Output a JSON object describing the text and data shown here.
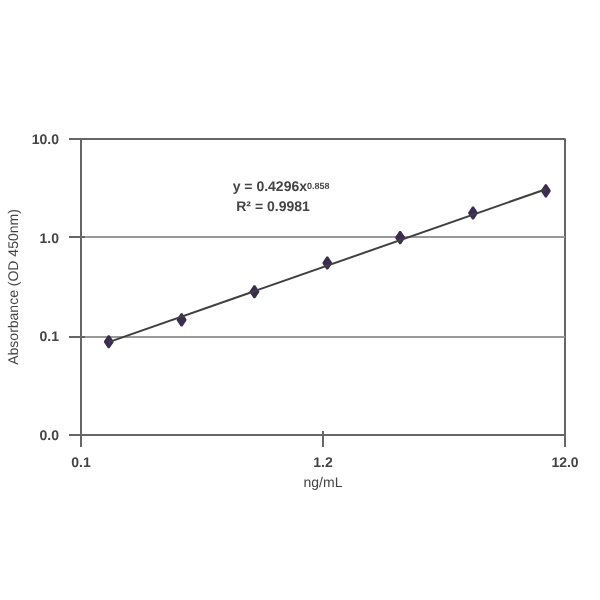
{
  "chart_data": {
    "type": "scatter",
    "xlabel": "ng/mL",
    "ylabel": "Absorbance (OD 450nm)",
    "log": "xy",
    "grid": "y",
    "marker": "diamond",
    "xlim": [
      0.12,
      12
    ],
    "xticks": [
      {
        "value": 0.12,
        "label": "0.1"
      },
      1.2,
      {
        "value": 12,
        "label": "12.0"
      }
    ],
    "ylim": [
      0.01,
      10
    ],
    "yticks": [
      {
        "value": 0.01,
        "label": "0.0"
      },
      {
        "value": 0.1,
        "label": "0.1"
      },
      {
        "value": 1,
        "label": "1.0"
      },
      {
        "value": 10,
        "label": "10.0"
      }
    ],
    "annotations": [
      "y = 0.4296x$^{0.858}$",
      "R² = 0.9981"
    ],
    "series": [
      {
        "color": "#3b2d4f",
        "x": [
          0.15625,
          0.3125,
          0.625,
          1.25,
          2.5,
          5,
          10
        ],
        "values": [
          0.088,
          0.147,
          0.283,
          0.553,
          1.0,
          1.78,
          2.98
        ]
      },
      {
        "type": "line",
        "color": "#404040",
        "marker": "none",
        "x": [
          0.15625,
          10
        ],
        "values": [
          0.0874,
          3.1
        ]
      }
    ]
  }
}
